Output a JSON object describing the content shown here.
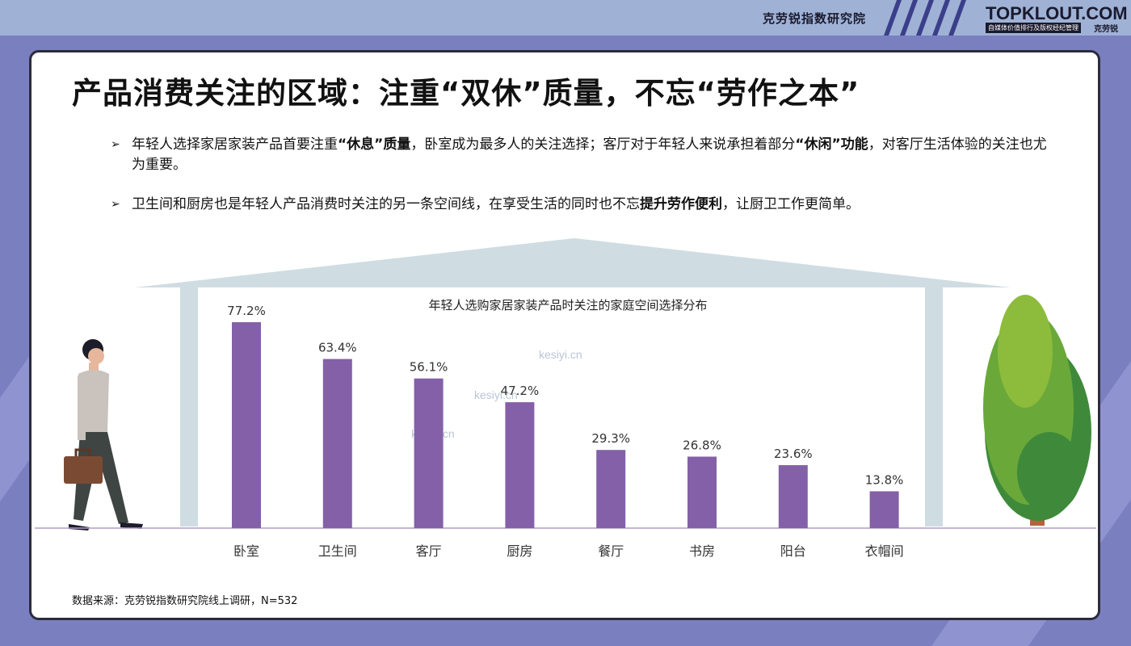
{
  "header": {
    "org_name": "克劳锐指数研究院",
    "logo_main": "TOPKLOUT.COM",
    "logo_sub": "自媒体价值排行及版权经纪管理",
    "logo_cn": "克劳锐"
  },
  "slide": {
    "title": "产品消费关注的区域：注重“双休”质量，不忘“劳作之本”",
    "bullets": [
      {
        "p1": "年轻人选择家居家装产品首要注重",
        "b1": "“休息”质量",
        "p2": "，卧室成为最多人的关注选择；客厅对于年轻人来说承担着部分",
        "b2": "“休闲”功能",
        "p3": "，对客厅生活体验的关注也尤为重要。"
      },
      {
        "p1": "卫生间和厨房也是年轻人产品消费时关注的另一条空间线，在享受生活的同时也不忘",
        "b1": "提升劳作便利",
        "p2": "，让厨卫工作更简单。"
      }
    ],
    "source": "数据来源：克劳锐指数研究院线上调研，N=532",
    "watermark": "kesiyi.cn"
  },
  "chart_data": {
    "type": "bar",
    "title": "年轻人选购家居家装产品时关注的家庭空间选择分布",
    "categories": [
      "卧室",
      "卫生间",
      "客厅",
      "厨房",
      "餐厅",
      "书房",
      "阳台",
      "衣帽间"
    ],
    "values": [
      77.2,
      63.4,
      56.1,
      47.2,
      29.3,
      26.8,
      23.6,
      13.8
    ],
    "value_labels": [
      "77.2%",
      "63.4%",
      "56.1%",
      "47.2%",
      "29.3%",
      "26.8%",
      "23.6%",
      "13.8%"
    ],
    "unit": "%",
    "ylim": [
      0,
      100
    ],
    "grid": false,
    "legend": "none",
    "bar_color": "#8460a8"
  },
  "colors": {
    "roof": "#cfdde3",
    "pillar": "#cfdde3",
    "baseline": "#b49cc8"
  }
}
